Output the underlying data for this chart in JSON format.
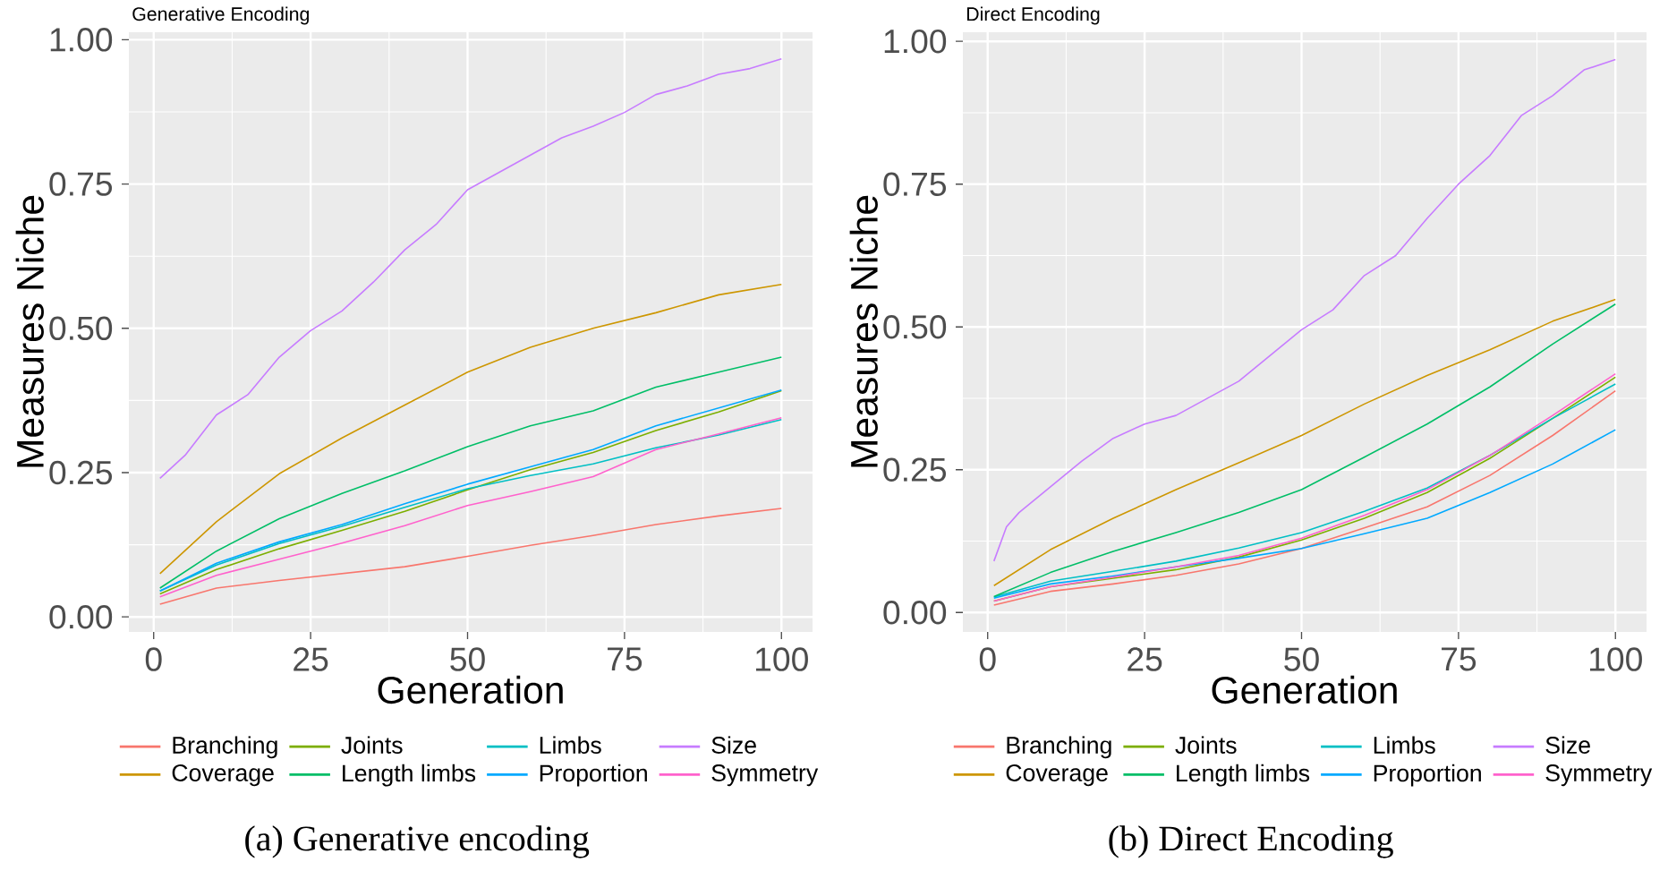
{
  "chart_data": [
    {
      "type": "line",
      "title": "Generative Encoding",
      "xlabel": "Generation",
      "ylabel": "Measures Niche",
      "x": [
        1,
        10,
        20,
        30,
        40,
        50,
        60,
        70,
        80,
        90,
        100
      ],
      "series": [
        {
          "name": "Branching",
          "color": "#F8766D",
          "values": [
            0.022,
            0.05,
            0.063,
            0.075,
            0.087,
            0.105,
            0.124,
            0.141,
            0.16,
            0.175,
            0.188
          ]
        },
        {
          "name": "Coverage",
          "color": "#CD9600",
          "values": [
            0.075,
            0.165,
            0.248,
            0.31,
            0.367,
            0.424,
            0.467,
            0.5,
            0.527,
            0.558,
            0.576
          ]
        },
        {
          "name": "Joints",
          "color": "#7CAE00",
          "values": [
            0.04,
            0.082,
            0.118,
            0.15,
            0.183,
            0.22,
            0.255,
            0.285,
            0.323,
            0.355,
            0.392
          ]
        },
        {
          "name": "Length limbs",
          "color": "#00BE67",
          "values": [
            0.05,
            0.114,
            0.17,
            0.214,
            0.253,
            0.295,
            0.331,
            0.357,
            0.398,
            0.424,
            0.45
          ]
        },
        {
          "name": "Limbs",
          "color": "#00BFC4",
          "values": [
            0.045,
            0.09,
            0.127,
            0.157,
            0.19,
            0.222,
            0.245,
            0.265,
            0.293,
            0.315,
            0.342
          ]
        },
        {
          "name": "Proportion",
          "color": "#00A9FF",
          "values": [
            0.045,
            0.093,
            0.13,
            0.16,
            0.196,
            0.23,
            0.26,
            0.29,
            0.331,
            0.362,
            0.393
          ]
        },
        {
          "name": "Size",
          "color": "#C77CFF",
          "x": [
            1,
            5,
            10,
            15,
            20,
            25,
            30,
            35,
            40,
            45,
            50,
            55,
            60,
            65,
            70,
            75,
            80,
            85,
            90,
            95,
            100
          ],
          "values": [
            0.24,
            0.28,
            0.35,
            0.385,
            0.45,
            0.496,
            0.53,
            0.58,
            0.636,
            0.68,
            0.74,
            0.77,
            0.8,
            0.83,
            0.85,
            0.874,
            0.905,
            0.92,
            0.94,
            0.95,
            0.967
          ]
        },
        {
          "name": "Symmetry",
          "color": "#FF61CC",
          "values": [
            0.035,
            0.072,
            0.1,
            0.128,
            0.158,
            0.193,
            0.217,
            0.243,
            0.29,
            0.317,
            0.345
          ]
        }
      ],
      "xlim": [
        -3.95,
        104.95
      ],
      "ylim": [
        -0.026,
        1.013
      ],
      "xticks": [
        0,
        25,
        50,
        75,
        100
      ],
      "yticks": [
        {
          "value": 0,
          "label": "0.00"
        },
        {
          "value": 0.25,
          "label": "0.25"
        },
        {
          "value": 0.5,
          "label": "0.50"
        },
        {
          "value": 0.75,
          "label": "0.75"
        },
        {
          "value": 1,
          "label": "1.00"
        }
      ],
      "grid": true,
      "legend": "bottom",
      "line_style": "solid",
      "annotations": [
        "(a) Generative encoding"
      ]
    },
    {
      "type": "line",
      "title": "Direct Encoding",
      "xlabel": "Generation",
      "ylabel": "Measures Niche",
      "x": [
        1,
        10,
        20,
        30,
        40,
        50,
        60,
        70,
        80,
        90,
        100
      ],
      "series": [
        {
          "name": "Branching",
          "color": "#F8766D",
          "values": [
            0.013,
            0.037,
            0.05,
            0.065,
            0.085,
            0.112,
            0.148,
            0.185,
            0.24,
            0.31,
            0.388
          ]
        },
        {
          "name": "Coverage",
          "color": "#CD9600",
          "values": [
            0.047,
            0.11,
            0.165,
            0.215,
            0.262,
            0.31,
            0.365,
            0.415,
            0.46,
            0.51,
            0.548
          ]
        },
        {
          "name": "Joints",
          "color": "#7CAE00",
          "values": [
            0.02,
            0.045,
            0.06,
            0.075,
            0.097,
            0.127,
            0.165,
            0.21,
            0.27,
            0.34,
            0.412
          ]
        },
        {
          "name": "Length limbs",
          "color": "#00BE67",
          "values": [
            0.028,
            0.07,
            0.107,
            0.14,
            0.175,
            0.215,
            0.272,
            0.33,
            0.395,
            0.47,
            0.54
          ]
        },
        {
          "name": "Limbs",
          "color": "#00BFC4",
          "values": [
            0.027,
            0.055,
            0.072,
            0.09,
            0.113,
            0.14,
            0.177,
            0.218,
            0.275,
            0.34,
            0.4
          ]
        },
        {
          "name": "Proportion",
          "color": "#00A9FF",
          "values": [
            0.025,
            0.05,
            0.064,
            0.08,
            0.095,
            0.112,
            0.138,
            0.165,
            0.21,
            0.26,
            0.32
          ]
        },
        {
          "name": "Size",
          "color": "#C77CFF",
          "x": [
            1,
            3,
            5,
            10,
            15,
            20,
            25,
            30,
            35,
            40,
            45,
            50,
            55,
            60,
            65,
            70,
            75,
            80,
            85,
            90,
            95,
            100
          ],
          "values": [
            0.09,
            0.15,
            0.175,
            0.22,
            0.265,
            0.305,
            0.33,
            0.345,
            0.375,
            0.405,
            0.45,
            0.495,
            0.53,
            0.59,
            0.625,
            0.69,
            0.75,
            0.8,
            0.87,
            0.905,
            0.95,
            0.968
          ]
        },
        {
          "name": "Symmetry",
          "color": "#FF61CC",
          "values": [
            0.02,
            0.045,
            0.062,
            0.08,
            0.1,
            0.13,
            0.17,
            0.215,
            0.275,
            0.345,
            0.418
          ]
        }
      ],
      "xlim": [
        -3.95,
        104.95
      ],
      "ylim": [
        -0.034,
        1.016
      ],
      "xticks": [
        0,
        25,
        50,
        75,
        100
      ],
      "yticks": [
        {
          "value": 0,
          "label": "0.00"
        },
        {
          "value": 0.25,
          "label": "0.25"
        },
        {
          "value": 0.5,
          "label": "0.50"
        },
        {
          "value": 0.75,
          "label": "0.75"
        },
        {
          "value": 1,
          "label": "1.00"
        }
      ],
      "grid": true,
      "legend": "bottom",
      "line_style": "solid",
      "annotations": [
        "(b) Direct Encoding"
      ]
    }
  ]
}
